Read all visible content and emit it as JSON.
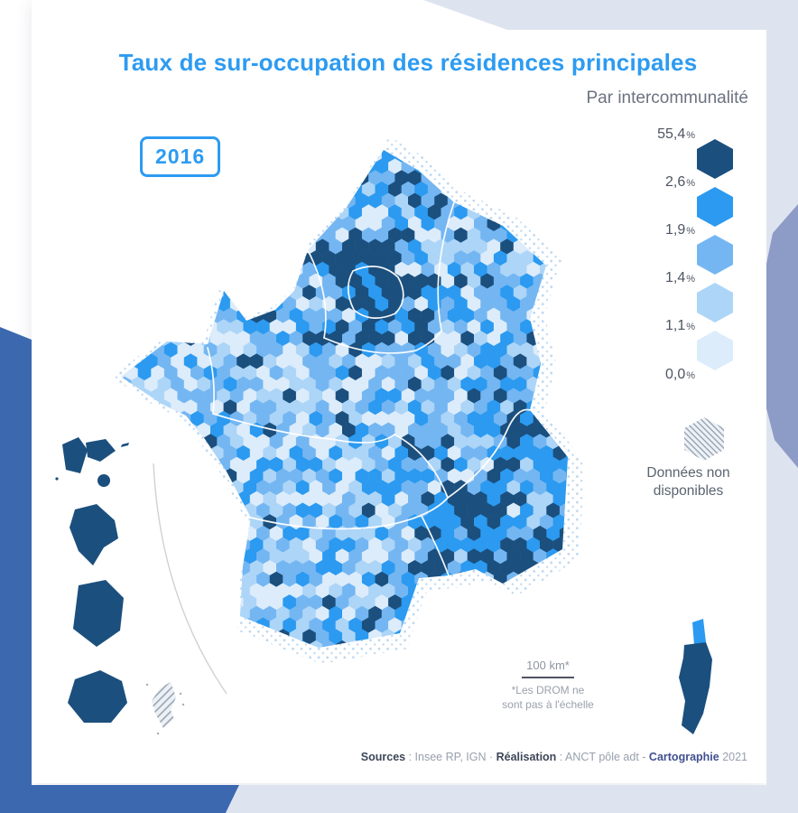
{
  "page": {
    "title": "Taux de sur-occupation des résidences principales",
    "subtitle": "Par intercommunalité",
    "year_badge": "2016"
  },
  "legend": {
    "unit": "%",
    "boundary_labels": [
      "55,4",
      "2,6",
      "1,9",
      "1,4",
      "1,1",
      "0,0"
    ],
    "class_colors": [
      "#1B4F7E",
      "#2B9AF0",
      "#74B6F2",
      "#ACD5F7",
      "#DCECFB"
    ],
    "no_data": {
      "line1": "Données non",
      "line2": "disponibles"
    }
  },
  "map": {
    "drom_color": "#1B4F7E",
    "stipple_color": "#BCD7EF",
    "region_border_color": "#FFFFFF",
    "separator_color": "#CDD2D7"
  },
  "scale": {
    "label": "100 km*",
    "note1": "*Les DROM ne",
    "note2": "sont pas à l'échelle"
  },
  "footer": {
    "s_label": "Sources",
    "s_text": " : Insee RP, IGN · ",
    "r_label": "Réalisation",
    "r_text": " : ANCT pôle adt - ",
    "c_label": "Cartographie",
    "c_year": " 2021"
  },
  "colors": {
    "accent": "#2D9BF1",
    "lavender": "#DEE3F0",
    "periwinkle": "#8C9CC6",
    "corner_blue": "#3C68B0"
  }
}
